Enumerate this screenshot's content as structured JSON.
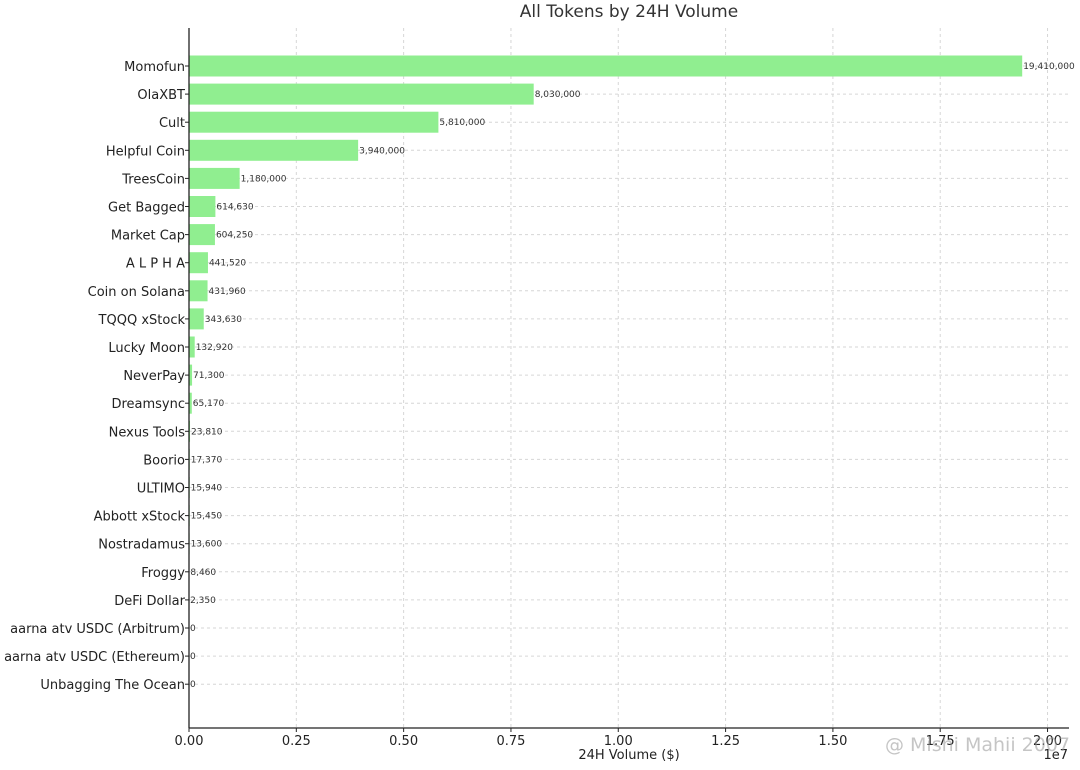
{
  "chart_data": {
    "type": "bar",
    "orientation": "horizontal",
    "title": "All Tokens by 24H Volume",
    "xlabel": "24H Volume ($)",
    "ylabel": "",
    "scale_note": "1e7",
    "xlim": [
      0,
      20500000
    ],
    "xticks": [
      0,
      2500000,
      5000000,
      7500000,
      10000000,
      12500000,
      15000000,
      17500000,
      20000000
    ],
    "xtick_labels": [
      "0.00",
      "0.25",
      "0.50",
      "0.75",
      "1.00",
      "1.25",
      "1.50",
      "1.75",
      "2.00"
    ],
    "grid": true,
    "bar_color": "#90ee90",
    "categories": [
      "Momofun",
      "OlaXBT",
      "Cult",
      "Helpful Coin",
      "TreesCoin",
      "Get Bagged",
      "Market Cap",
      "A L P H A",
      "Coin on Solana",
      "TQQQ xStock",
      "Lucky Moon",
      "NeverPay",
      "Dreamsync",
      "Nexus Tools",
      "Boorio",
      "ULTIMO",
      "Abbott xStock",
      "Nostradamus",
      "Froggy",
      "DeFi Dollar",
      "aarna atv USDC (Arbitrum)",
      "aarna atv USDC (Ethereum)",
      "Unbagging The Ocean"
    ],
    "values": [
      19410000,
      8030000,
      5810000,
      3940000,
      1180000,
      614630,
      604250,
      441520,
      431960,
      343630,
      132920,
      71300,
      65170,
      23810,
      17370,
      15940,
      15450,
      13600,
      8460,
      2350,
      0,
      0,
      0
    ],
    "value_labels": [
      "19,410,000",
      "8,030,000",
      "5,810,000",
      "3,940,000",
      "1,180,000",
      "614,630",
      "604,250",
      "441,520",
      "431,960",
      "343,630",
      "132,920",
      "71,300",
      "65,170",
      "23,810",
      "17,370",
      "15,940",
      "15,450",
      "13,600",
      "8,460",
      "2,350",
      "0",
      "0",
      "0"
    ]
  },
  "watermark": "@ Mishi Mahii 2007"
}
